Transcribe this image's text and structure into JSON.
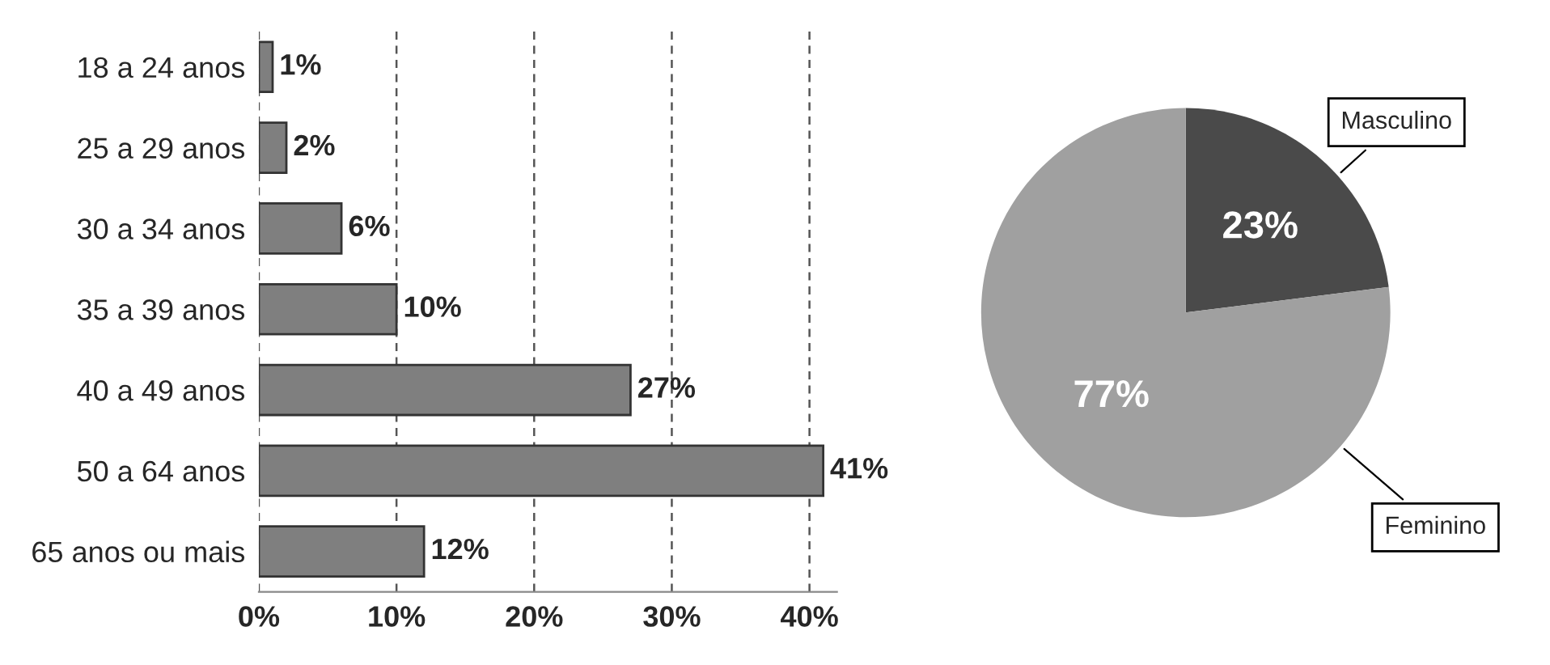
{
  "chart_data": [
    {
      "type": "bar",
      "orientation": "horizontal",
      "categories": [
        "18 a 24 anos",
        "25 a 29 anos",
        "30 a 34 anos",
        "35 a 39 anos",
        "40 a 49 anos",
        "50 a 64 anos",
        "65 anos ou mais"
      ],
      "values": [
        1,
        2,
        6,
        10,
        27,
        41,
        12
      ],
      "value_labels": [
        "1%",
        "2%",
        "6%",
        "10%",
        "27%",
        "41%",
        "12%"
      ],
      "color": "#7f7f7f",
      "xlim": [
        0,
        42
      ],
      "xticks": [
        {
          "value": 0,
          "label": "0%"
        },
        {
          "value": 10,
          "label": "10%"
        },
        {
          "value": 20,
          "label": "20%"
        },
        {
          "value": 30,
          "label": "30%"
        },
        {
          "value": 40,
          "label": "40%"
        }
      ],
      "grid": "x",
      "legend": false
    },
    {
      "type": "pie",
      "categories": [
        "Masculino",
        "Feminino"
      ],
      "values": [
        23,
        77
      ],
      "colors": [
        "#4a4a4a",
        "#a0a0a0"
      ],
      "value_labels": [
        "23%",
        "77%"
      ],
      "legend": false
    }
  ]
}
